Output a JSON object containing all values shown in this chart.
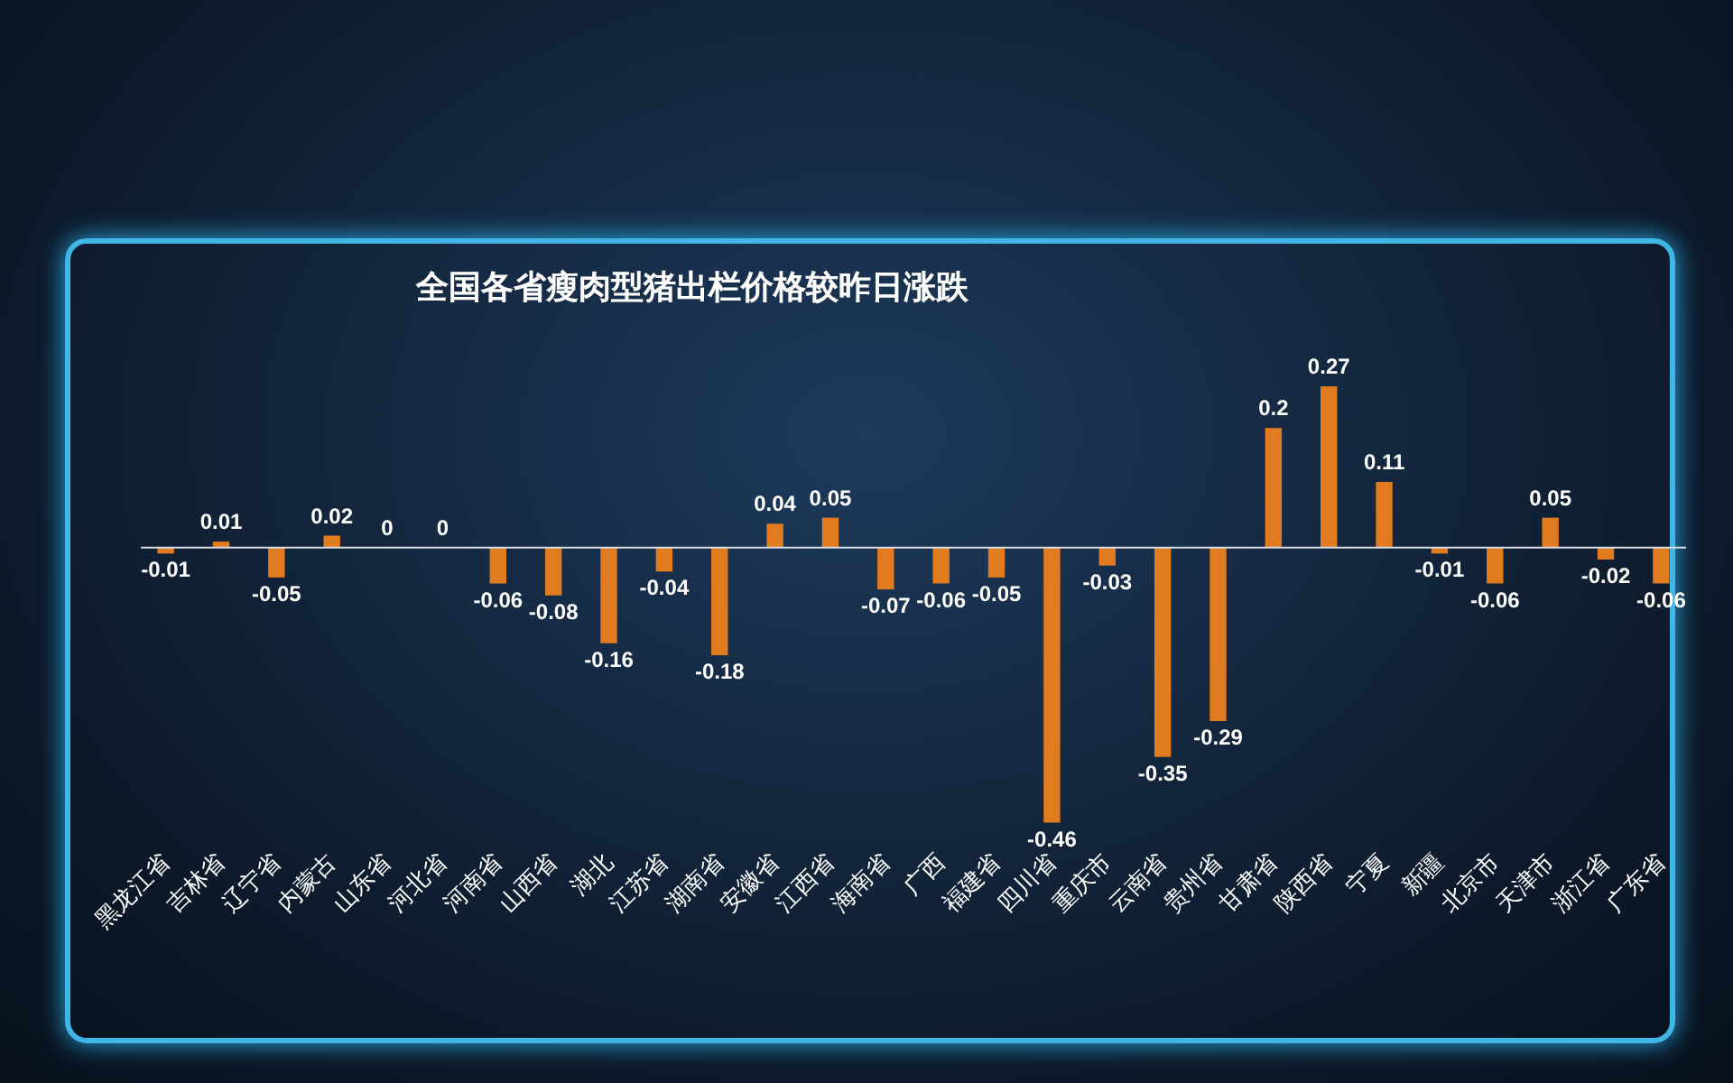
{
  "chart_data": {
    "type": "bar",
    "title": "全国各省瘦肉型猪出栏价格较昨日涨跌",
    "categories": [
      "黑龙江省",
      "吉林省",
      "辽宁省",
      "内蒙古",
      "山东省",
      "河北省",
      "河南省",
      "山西省",
      "湖北",
      "江苏省",
      "湖南省",
      "安徽省",
      "江西省",
      "海南省",
      "广西",
      "福建省",
      "四川省",
      "重庆市",
      "云南省",
      "贵州省",
      "甘肃省",
      "陕西省",
      "宁夏",
      "新疆",
      "北京市",
      "天津市",
      "浙江省",
      "广东省"
    ],
    "values": [
      -0.01,
      0.01,
      -0.05,
      0.02,
      0,
      0,
      -0.06,
      -0.08,
      -0.16,
      -0.04,
      -0.18,
      0.04,
      0.05,
      -0.07,
      -0.06,
      -0.05,
      -0.46,
      -0.03,
      -0.35,
      -0.29,
      0.2,
      0.27,
      0.11,
      -0.01,
      -0.06,
      0.05,
      -0.02,
      -0.06
    ],
    "color": "#e07b20",
    "data_labels": true
  }
}
